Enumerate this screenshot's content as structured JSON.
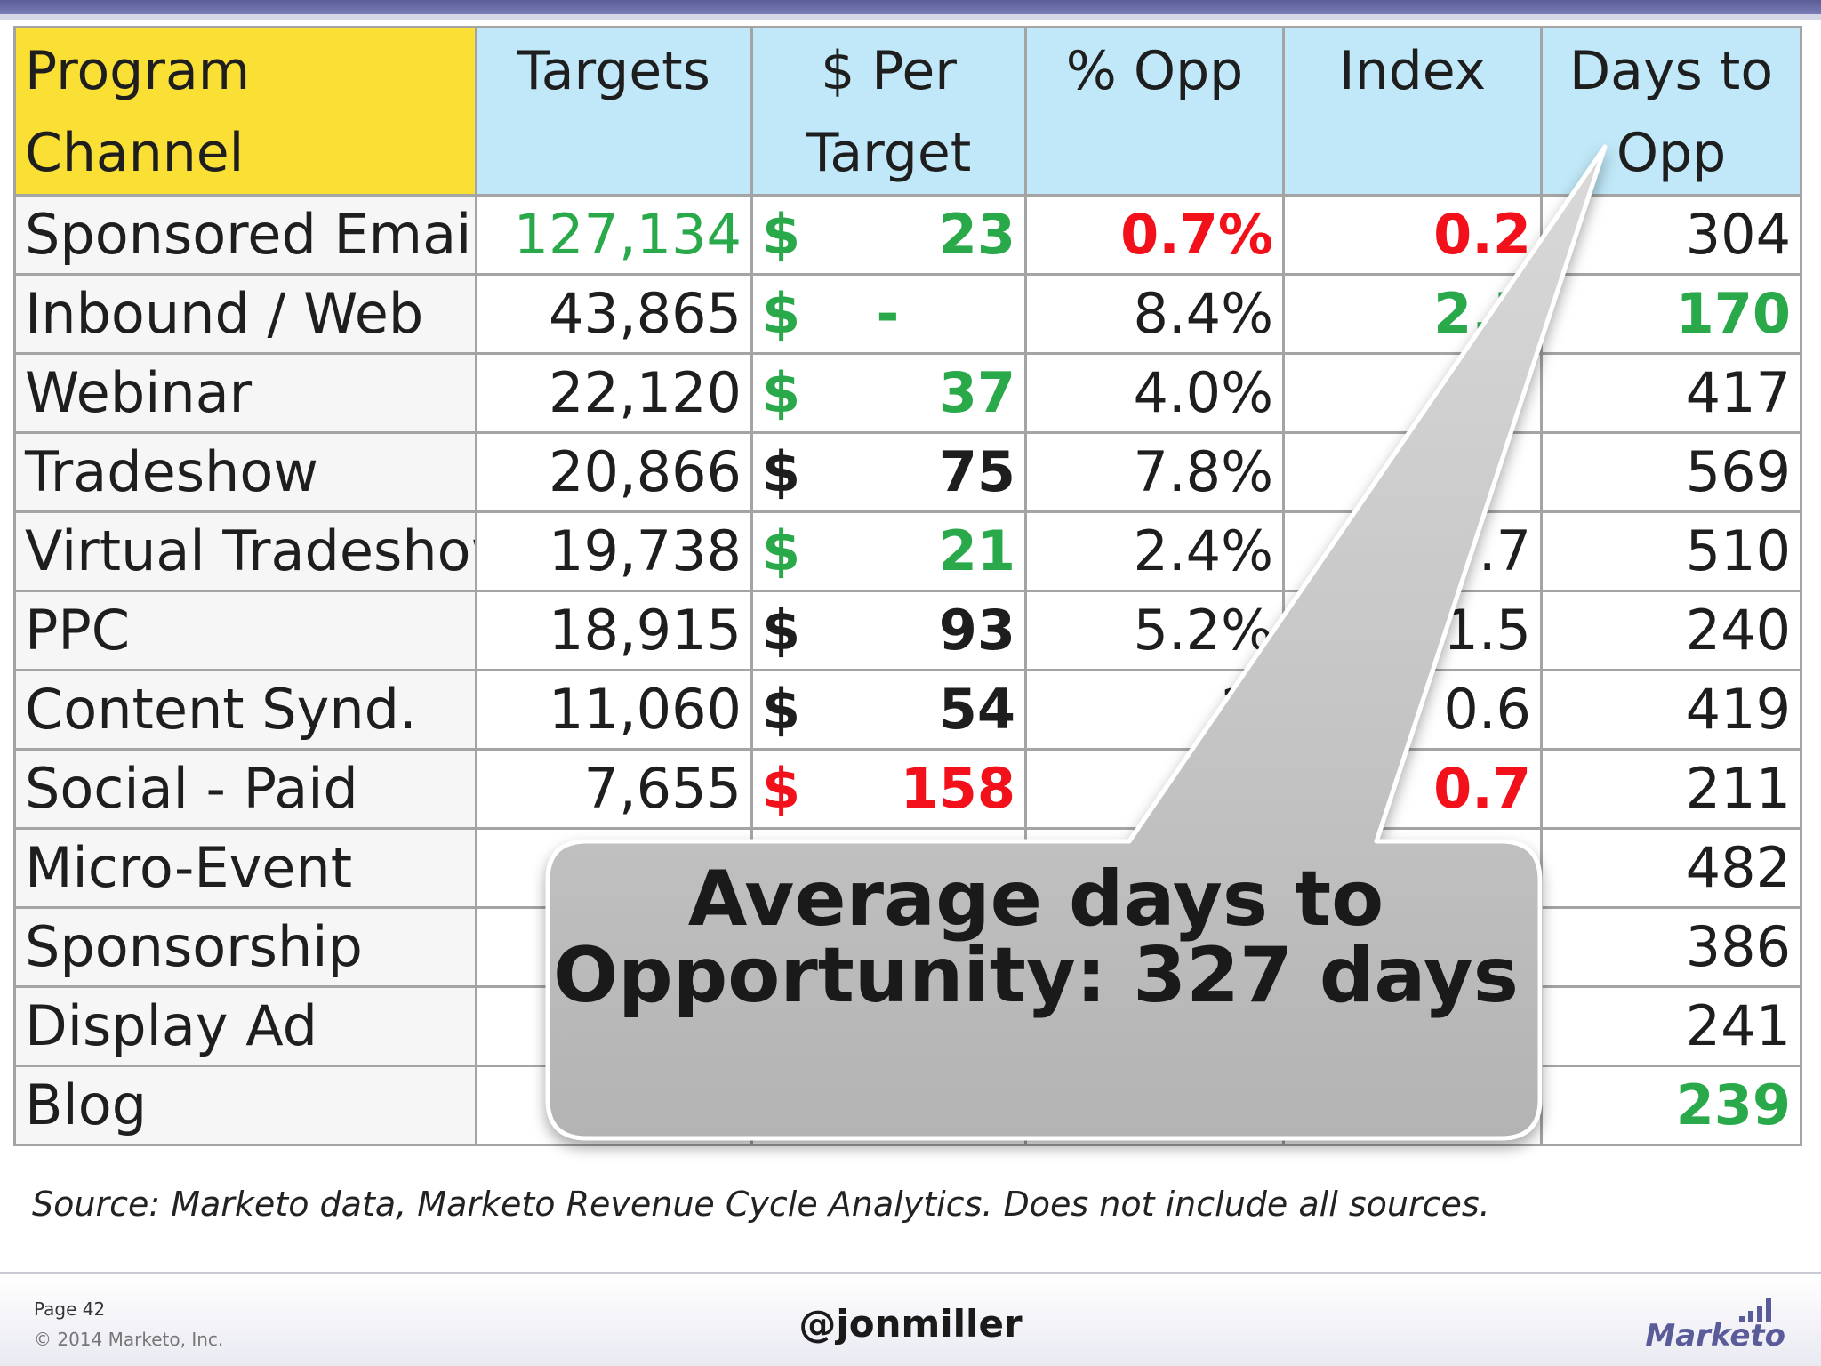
{
  "table": {
    "headers": [
      "Program Channel",
      "Targets",
      "$ Per Target",
      "% Opp",
      "Index",
      "Days to Opp"
    ],
    "rows": [
      {
        "channel": "Sponsored Email",
        "targets": "127,134",
        "dollar": "$",
        "per": "23",
        "opp": "0.7%",
        "index": "0.2",
        "days": "304"
      },
      {
        "channel": "Inbound / Web",
        "targets": "43,865",
        "dollar": "$",
        "per": "-",
        "opp": "8.4%",
        "index": "2.5",
        "days": "170"
      },
      {
        "channel": "Webinar",
        "targets": "22,120",
        "dollar": "$",
        "per": "37",
        "opp": "4.0%",
        "index": "",
        "days": "417"
      },
      {
        "channel": "Tradeshow",
        "targets": "20,866",
        "dollar": "$",
        "per": "75",
        "opp": "7.8%",
        "index": "",
        "days": "569"
      },
      {
        "channel": "Virtual Tradeshow",
        "targets": "19,738",
        "dollar": "$",
        "per": "21",
        "opp": "2.4%",
        "index": ".7",
        "days": "510"
      },
      {
        "channel": "PPC",
        "targets": "18,915",
        "dollar": "$",
        "per": "93",
        "opp": "5.2%",
        "index": "1.5",
        "days": "240"
      },
      {
        "channel": "Content Synd.",
        "targets": "11,060",
        "dollar": "$",
        "per": "54",
        "opp": "2.",
        "index": "0.6",
        "days": "419"
      },
      {
        "channel": "Social - Paid",
        "targets": "7,655",
        "dollar": "$",
        "per": "158",
        "opp": "2",
        "index": "0.7",
        "days": "211"
      },
      {
        "channel": "Micro-Event",
        "targets": "",
        "dollar": "",
        "per": "",
        "opp": "",
        "index": "",
        "days": "482"
      },
      {
        "channel": "Sponsorship",
        "targets": "",
        "dollar": "",
        "per": "",
        "opp": "",
        "index": "",
        "days": "386"
      },
      {
        "channel": "Display Ad",
        "targets": "",
        "dollar": "",
        "per": "",
        "opp": "",
        "index": "",
        "days": "241"
      },
      {
        "channel": "Blog",
        "targets": "",
        "dollar": "",
        "per": "",
        "opp": "",
        "index": "",
        "days": "239"
      }
    ]
  },
  "callout": {
    "text": "Average days to Opportunity: 327 days"
  },
  "source": "Source: Marketo data, Marketo Revenue Cycle Analytics. Does not include all sources.",
  "footer": {
    "page": "Page 42",
    "copyright": "© 2014 Marketo, Inc.",
    "handle": "@jonmiller",
    "logo_text": "Marketo"
  },
  "colors": {
    "header_blue": "#c0e8f8",
    "header_yellow": "#fadf35",
    "green": "#2aa94b",
    "red": "#f2101a"
  }
}
